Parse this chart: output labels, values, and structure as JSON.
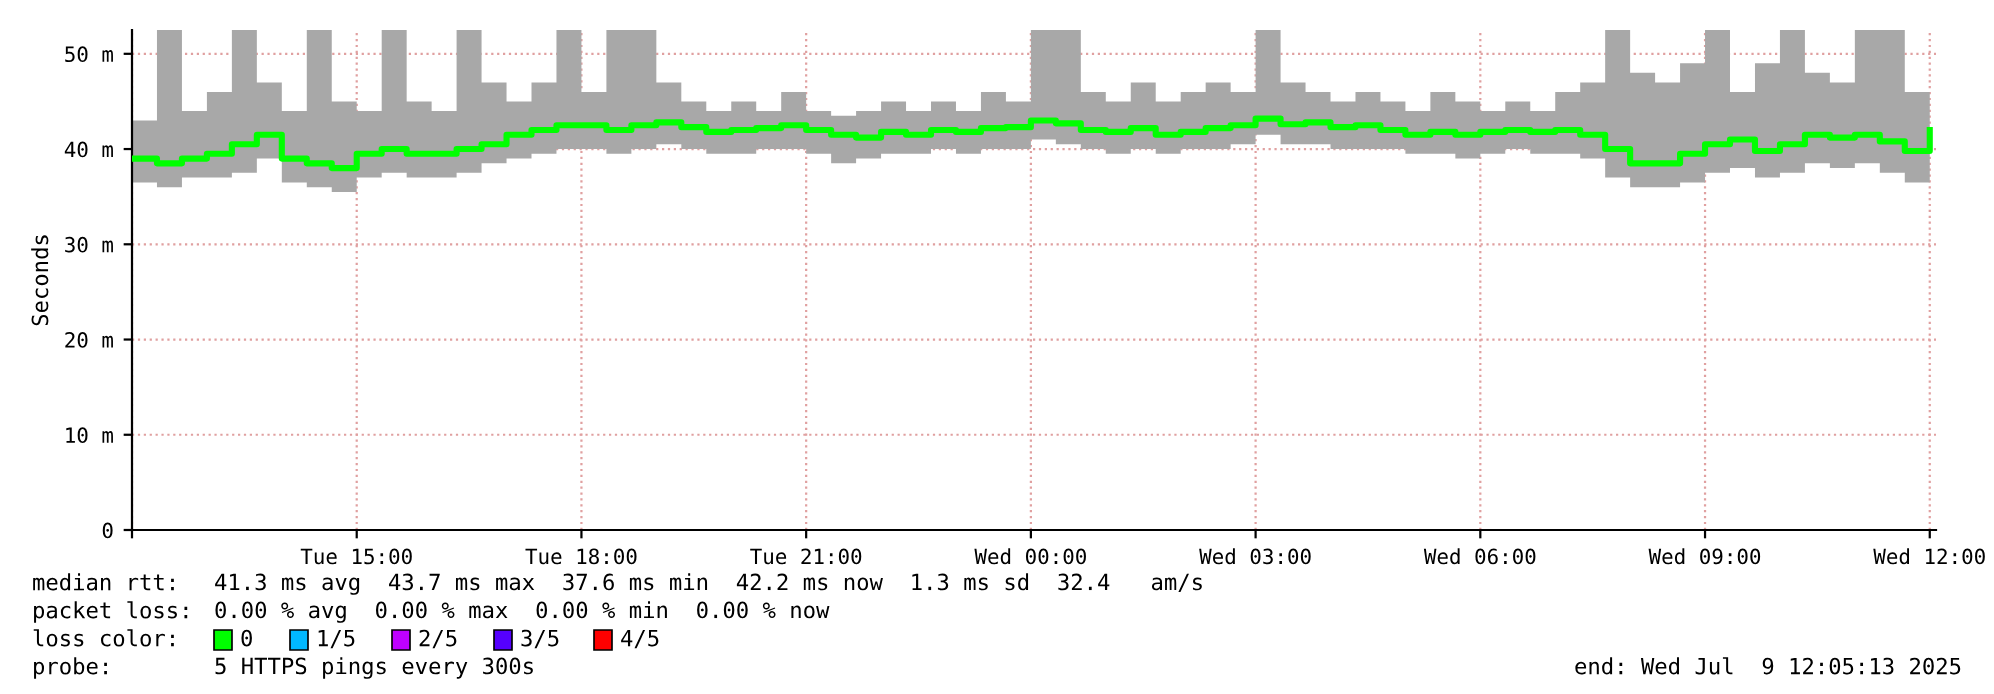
{
  "chart_data": {
    "type": "step",
    "ylabel": "Seconds",
    "x": [
      "2025-07-08T12:00",
      "2025-07-08T12:20",
      "2025-07-08T12:40",
      "2025-07-08T13:00",
      "2025-07-08T13:20",
      "2025-07-08T13:40",
      "2025-07-08T14:00",
      "2025-07-08T14:20",
      "2025-07-08T14:40",
      "2025-07-08T15:00",
      "2025-07-08T15:20",
      "2025-07-08T15:40",
      "2025-07-08T16:00",
      "2025-07-08T16:20",
      "2025-07-08T16:40",
      "2025-07-08T17:00",
      "2025-07-08T17:20",
      "2025-07-08T17:40",
      "2025-07-08T18:00",
      "2025-07-08T18:20",
      "2025-07-08T18:40",
      "2025-07-08T19:00",
      "2025-07-08T19:20",
      "2025-07-08T19:40",
      "2025-07-08T20:00",
      "2025-07-08T20:20",
      "2025-07-08T20:40",
      "2025-07-08T21:00",
      "2025-07-08T21:20",
      "2025-07-08T21:40",
      "2025-07-08T22:00",
      "2025-07-08T22:20",
      "2025-07-08T22:40",
      "2025-07-08T23:00",
      "2025-07-08T23:20",
      "2025-07-08T23:40",
      "2025-07-09T00:00",
      "2025-07-09T00:20",
      "2025-07-09T00:40",
      "2025-07-09T01:00",
      "2025-07-09T01:20",
      "2025-07-09T01:40",
      "2025-07-09T02:00",
      "2025-07-09T02:20",
      "2025-07-09T02:40",
      "2025-07-09T03:00",
      "2025-07-09T03:20",
      "2025-07-09T03:40",
      "2025-07-09T04:00",
      "2025-07-09T04:20",
      "2025-07-09T04:40",
      "2025-07-09T05:00",
      "2025-07-09T05:20",
      "2025-07-09T05:40",
      "2025-07-09T06:00",
      "2025-07-09T06:20",
      "2025-07-09T06:40",
      "2025-07-09T07:00",
      "2025-07-09T07:20",
      "2025-07-09T07:40",
      "2025-07-09T08:00",
      "2025-07-09T08:20",
      "2025-07-09T08:40",
      "2025-07-09T09:00",
      "2025-07-09T09:20",
      "2025-07-09T09:40",
      "2025-07-09T10:00",
      "2025-07-09T10:20",
      "2025-07-09T10:40",
      "2025-07-09T11:00",
      "2025-07-09T11:20",
      "2025-07-09T11:40",
      "2025-07-09T12:00"
    ],
    "series": [
      {
        "color": "#00ff00",
        "values": [
          39.0,
          38.5,
          39.0,
          39.5,
          40.5,
          41.5,
          39.0,
          38.5,
          38.0,
          39.5,
          40.0,
          39.5,
          39.5,
          40.0,
          40.5,
          41.5,
          42.0,
          42.5,
          42.5,
          42.0,
          42.5,
          42.8,
          42.3,
          41.8,
          42.0,
          42.2,
          42.5,
          42.0,
          41.5,
          41.2,
          41.8,
          41.5,
          42.0,
          41.8,
          42.2,
          42.3,
          43.0,
          42.7,
          42.0,
          41.8,
          42.2,
          41.5,
          41.8,
          42.2,
          42.5,
          43.2,
          42.6,
          42.8,
          42.3,
          42.5,
          42.0,
          41.5,
          41.8,
          41.5,
          41.8,
          42.0,
          41.8,
          42.0,
          41.5,
          40.0,
          38.5,
          38.5,
          39.5,
          40.5,
          41.0,
          39.8,
          40.5,
          41.5,
          41.2,
          41.5,
          40.8,
          39.8,
          42.0
        ],
        "upper": [
          43.0,
          52.5,
          44.0,
          46.0,
          52.5,
          47.0,
          44.0,
          52.5,
          45.0,
          44.0,
          52.5,
          45.0,
          44.0,
          52.5,
          47.0,
          45.0,
          47.0,
          52.5,
          46.0,
          52.5,
          52.5,
          47.0,
          45.0,
          44.0,
          45.0,
          44.0,
          46.0,
          44.0,
          43.5,
          44.0,
          45.0,
          44.0,
          45.0,
          44.0,
          46.0,
          45.0,
          52.5,
          52.5,
          46.0,
          45.0,
          47.0,
          45.0,
          46.0,
          47.0,
          46.0,
          52.5,
          47.0,
          46.0,
          45.0,
          46.0,
          45.0,
          44.0,
          46.0,
          45.0,
          44.0,
          45.0,
          44.0,
          46.0,
          47.0,
          52.5,
          48.0,
          47.0,
          49.0,
          52.5,
          46.0,
          49.0,
          52.5,
          48.0,
          47.0,
          52.5,
          52.5,
          46.0,
          43.0
        ],
        "lower": [
          36.5,
          36.0,
          37.0,
          37.0,
          37.5,
          39.0,
          36.5,
          36.0,
          35.5,
          37.0,
          37.5,
          37.0,
          37.0,
          37.5,
          38.5,
          39.0,
          39.5,
          40.0,
          40.0,
          39.5,
          40.0,
          40.5,
          40.0,
          39.5,
          39.5,
          40.0,
          40.0,
          39.5,
          38.5,
          39.0,
          39.5,
          39.5,
          40.0,
          39.5,
          40.0,
          40.0,
          41.0,
          40.5,
          40.0,
          39.5,
          40.0,
          39.5,
          40.0,
          40.0,
          40.5,
          41.5,
          40.5,
          40.5,
          40.0,
          40.0,
          40.0,
          39.5,
          39.5,
          39.0,
          39.5,
          40.0,
          39.5,
          39.5,
          39.0,
          37.0,
          36.0,
          36.0,
          36.5,
          37.5,
          38.0,
          37.0,
          37.5,
          38.5,
          38.0,
          38.5,
          37.5,
          36.5,
          39.0
        ]
      }
    ],
    "xlim": [
      "2025-07-08T12:00",
      "2025-07-09T12:05"
    ],
    "xticks": [
      {
        "value": "2025-07-08T12:00",
        "label": null
      },
      {
        "value": "2025-07-08T15:00",
        "label": "Tue 15:00"
      },
      {
        "value": "2025-07-08T18:00",
        "label": "Tue 18:00"
      },
      {
        "value": "2025-07-08T21:00",
        "label": "Tue 21:00"
      },
      {
        "value": "2025-07-09T00:00",
        "label": "Wed 00:00"
      },
      {
        "value": "2025-07-09T03:00",
        "label": "Wed 03:00"
      },
      {
        "value": "2025-07-09T06:00",
        "label": "Wed 06:00"
      },
      {
        "value": "2025-07-09T09:00",
        "label": "Wed 09:00"
      },
      {
        "value": "2025-07-09T12:00",
        "label": "Wed 12:00"
      }
    ],
    "ylim": [
      0,
      52.5
    ],
    "yticks": [
      0,
      {
        "value": 10,
        "label": "10 m"
      },
      {
        "value": 20,
        "label": "20 m"
      },
      {
        "value": 30,
        "label": "30 m"
      },
      {
        "value": 40,
        "label": "40 m"
      },
      {
        "value": 50,
        "label": "50 m"
      }
    ],
    "grid": true,
    "line_style": "solid",
    "annotations": [
      "median rtt:",
      "41.3 ms avg  43.7 ms max  37.6 ms min  42.2 ms now  1.3 ms sd  32.4   am/s",
      "packet loss:",
      "0.00 % avg  0.00 % max  0.00 % min  0.00 % now",
      "loss color:",
      "0",
      "1/5",
      "2/5",
      "3/5",
      "4/5",
      "probe:",
      "5 HTTPS pings every 300s",
      "end: Wed Jul  9 12:05:13 2025"
    ]
  }
}
